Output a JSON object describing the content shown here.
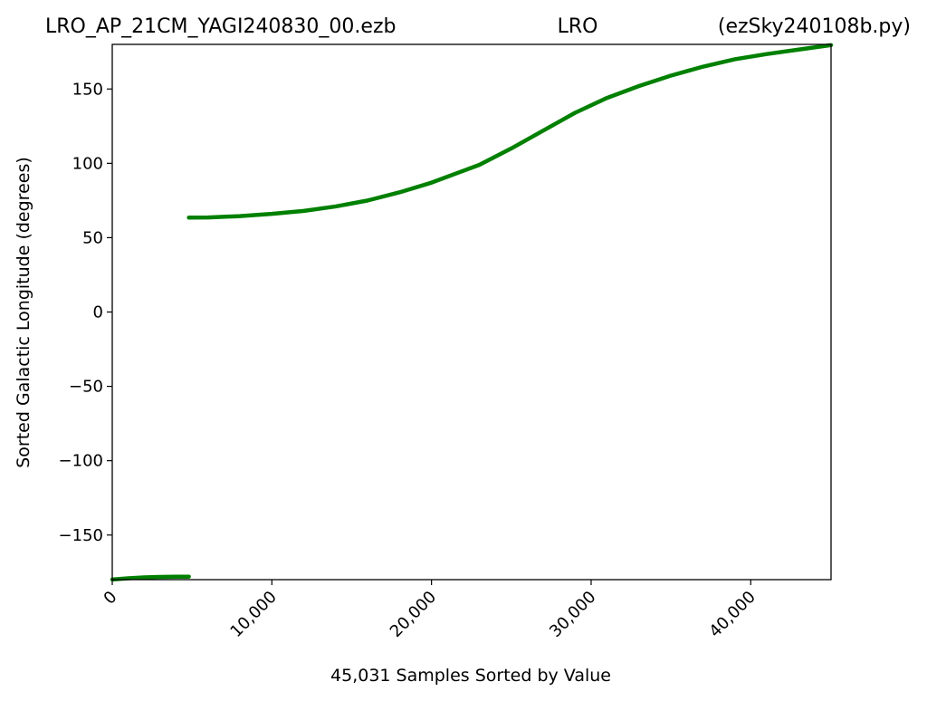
{
  "title": {
    "left": "LRO_AP_21CM_YAGI240830_00.ezb",
    "center": "LRO",
    "right": "(ezSky240108b.py)"
  },
  "colors": {
    "series": "#008000",
    "axis": "#000000",
    "background": "#ffffff"
  },
  "chart_data": {
    "type": "line",
    "xlabel": "45,031 Samples Sorted by Value",
    "ylabel": "Sorted Galactic Longitude (degrees)",
    "xlim": [
      0,
      45031
    ],
    "ylim": [
      -180,
      180
    ],
    "grid": false,
    "legend": "none",
    "x_ticks": [
      {
        "value": 0,
        "label": "0"
      },
      {
        "value": 10000,
        "label": "10,000"
      },
      {
        "value": 20000,
        "label": "20,000"
      },
      {
        "value": 30000,
        "label": "30,000"
      },
      {
        "value": 40000,
        "label": "40,000"
      }
    ],
    "x_tick_rotation": -45,
    "y_ticks": [
      {
        "value": -150,
        "label": "−150"
      },
      {
        "value": -100,
        "label": "−100"
      },
      {
        "value": -50,
        "label": "−50"
      },
      {
        "value": 0,
        "label": "0"
      },
      {
        "value": 50,
        "label": "50"
      },
      {
        "value": 100,
        "label": "100"
      },
      {
        "value": 150,
        "label": "150"
      }
    ],
    "series": [
      {
        "color": "#008000",
        "segments": [
          {
            "x": [
              0,
              1000,
              2000,
              3000,
              4000,
              4800
            ],
            "y": [
              -179.9,
              -179.1,
              -178.5,
              -178.2,
              -178.0,
              -178.0
            ]
          },
          {
            "x": [
              4800,
              6000,
              8000,
              10000,
              12000,
              14000,
              16000,
              18000,
              20000,
              23000,
              25000,
              27000,
              29000,
              31000,
              33000,
              35000,
              37000,
              39000,
              41000,
              43000,
              45031
            ],
            "y": [
              63.5,
              63.6,
              64.5,
              66.0,
              68.0,
              71.0,
              75.0,
              80.5,
              87.0,
              99.0,
              110.0,
              122.0,
              134.0,
              144.0,
              152.0,
              159.0,
              165.0,
              170.0,
              173.5,
              176.5,
              179.5
            ]
          }
        ]
      }
    ]
  }
}
